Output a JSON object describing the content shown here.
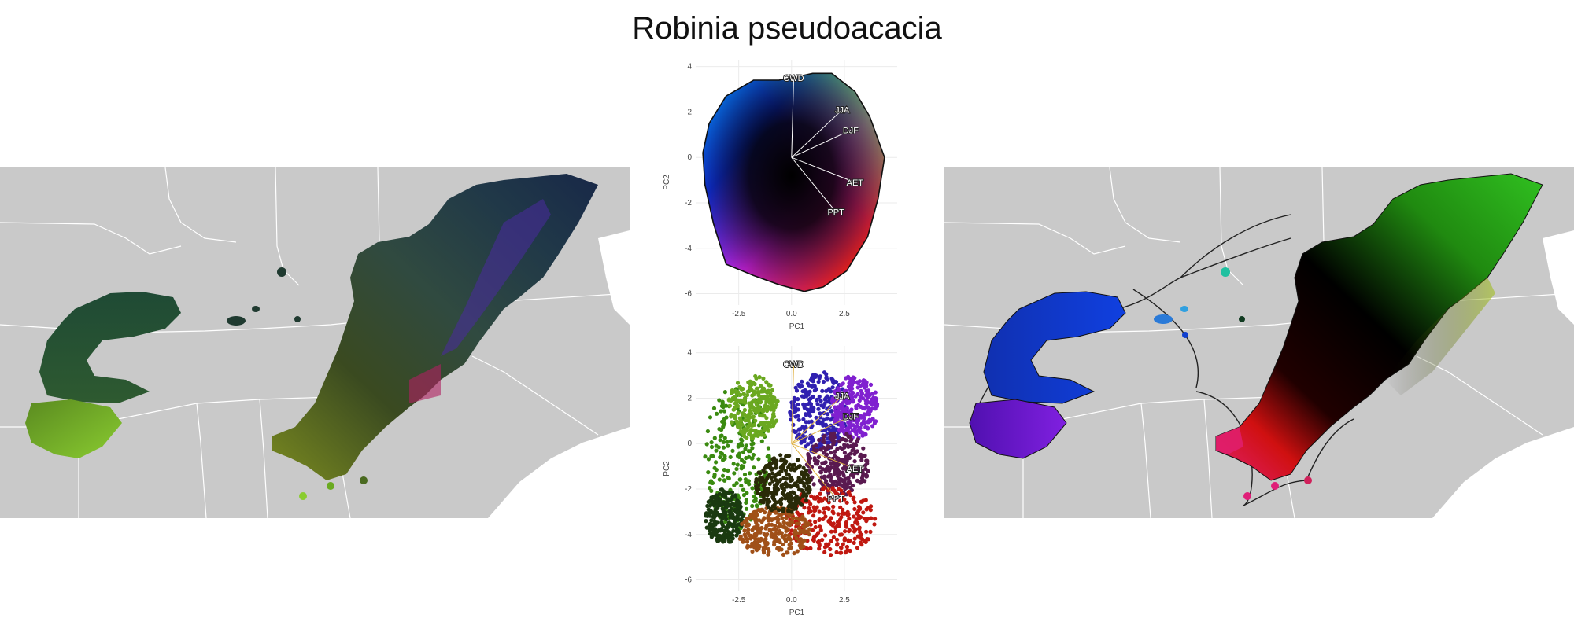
{
  "title": "Robinia pseudoacacia",
  "colors": {
    "map_background": "#c9c9c9",
    "boundary_lines": "#ffffff",
    "grid": "#ebebeb",
    "loading_line_top": "#ffffff",
    "loading_line_bottom": "#e0b040"
  },
  "chart_data": [
    {
      "type": "scatter",
      "panel": "top-biplot",
      "xlabel": "PC1",
      "ylabel": "PC2",
      "xlim": [
        -4.5,
        5
      ],
      "ylim": [
        -6.5,
        4.3
      ],
      "x_ticks": [
        -2.5,
        0,
        2.5
      ],
      "x_tick_labels": [
        "-2.5",
        "0.0",
        "2.5"
      ],
      "y_ticks": [
        4,
        2,
        0,
        -2,
        -4,
        -6
      ],
      "y_tick_labels": [
        "4",
        "2",
        "0",
        "-2",
        "-4",
        "-6"
      ],
      "grid": true,
      "hull_outline": [
        [
          -0.6,
          3.4
        ],
        [
          0,
          3.5
        ],
        [
          1,
          3.7
        ],
        [
          1.9,
          3.7
        ],
        [
          3,
          2.9
        ],
        [
          3.7,
          1.8
        ],
        [
          4.4,
          0
        ],
        [
          4.1,
          -1.8
        ],
        [
          3.6,
          -3.5
        ],
        [
          2.6,
          -5.0
        ],
        [
          1.5,
          -5.7
        ],
        [
          0.6,
          -5.9
        ],
        [
          -0.6,
          -5.6
        ],
        [
          -1.8,
          -5.2
        ],
        [
          -3.1,
          -4.7
        ],
        [
          -3.4,
          -3.8
        ],
        [
          -3.7,
          -2.9
        ],
        [
          -4.1,
          -1.2
        ],
        [
          -4.2,
          0.2
        ],
        [
          -3.9,
          1.5
        ],
        [
          -3.1,
          2.7
        ],
        [
          -1.8,
          3.4
        ]
      ],
      "loadings": [
        {
          "label": "CWD",
          "x": 0.1,
          "y": 3.5
        },
        {
          "label": "JJA",
          "x": 2.4,
          "y": 2.1
        },
        {
          "label": "DJF",
          "x": 2.8,
          "y": 1.2
        },
        {
          "label": "AET",
          "x": 3.0,
          "y": -1.1
        },
        {
          "label": "PPT",
          "x": 2.1,
          "y": -2.4
        }
      ]
    },
    {
      "type": "scatter",
      "panel": "bottom-biplot",
      "xlabel": "PC1",
      "ylabel": "PC2",
      "xlim": [
        -4.5,
        5
      ],
      "ylim": [
        -6.5,
        4.3
      ],
      "x_ticks": [
        -2.5,
        0,
        2.5
      ],
      "x_tick_labels": [
        "-2.5",
        "0.0",
        "2.5"
      ],
      "y_ticks": [
        4,
        2,
        0,
        -2,
        -4,
        -6
      ],
      "y_tick_labels": [
        "4",
        "2",
        "0",
        "-2",
        "-4",
        "-6"
      ],
      "grid": true,
      "point_clusters": [
        {
          "color": "#3a8a10",
          "cx": -2.6,
          "cy": -0.6,
          "rx": 1.6,
          "ry": 3.2
        },
        {
          "color": "#6aa820",
          "cx": -1.8,
          "cy": 1.6,
          "rx": 1.2,
          "ry": 1.4
        },
        {
          "color": "#1a3a10",
          "cx": -3.2,
          "cy": -3.2,
          "rx": 0.9,
          "ry": 1.2
        },
        {
          "color": "#3020b0",
          "cx": 1.3,
          "cy": 1.4,
          "rx": 1.4,
          "ry": 1.8
        },
        {
          "color": "#8020d0",
          "cx": 3.0,
          "cy": 1.6,
          "rx": 1.1,
          "ry": 1.4
        },
        {
          "color": "#5a1a50",
          "cx": 2.2,
          "cy": -0.9,
          "rx": 1.5,
          "ry": 1.4
        },
        {
          "color": "#c01810",
          "cx": 1.8,
          "cy": -3.4,
          "rx": 2.2,
          "ry": 1.5
        },
        {
          "color": "#a05018",
          "cx": -0.8,
          "cy": -3.9,
          "rx": 1.7,
          "ry": 1.1
        },
        {
          "color": "#2a2a08",
          "cx": -0.4,
          "cy": -1.8,
          "rx": 1.3,
          "ry": 1.3
        }
      ],
      "loadings": [
        {
          "label": "CWD",
          "x": 0.1,
          "y": 3.5
        },
        {
          "label": "JJA",
          "x": 2.4,
          "y": 2.1
        },
        {
          "label": "DJF",
          "x": 2.8,
          "y": 1.2
        },
        {
          "label": "AET",
          "x": 3.0,
          "y": -1.1
        },
        {
          "label": "PPT",
          "x": 2.1,
          "y": -2.4
        }
      ]
    }
  ]
}
